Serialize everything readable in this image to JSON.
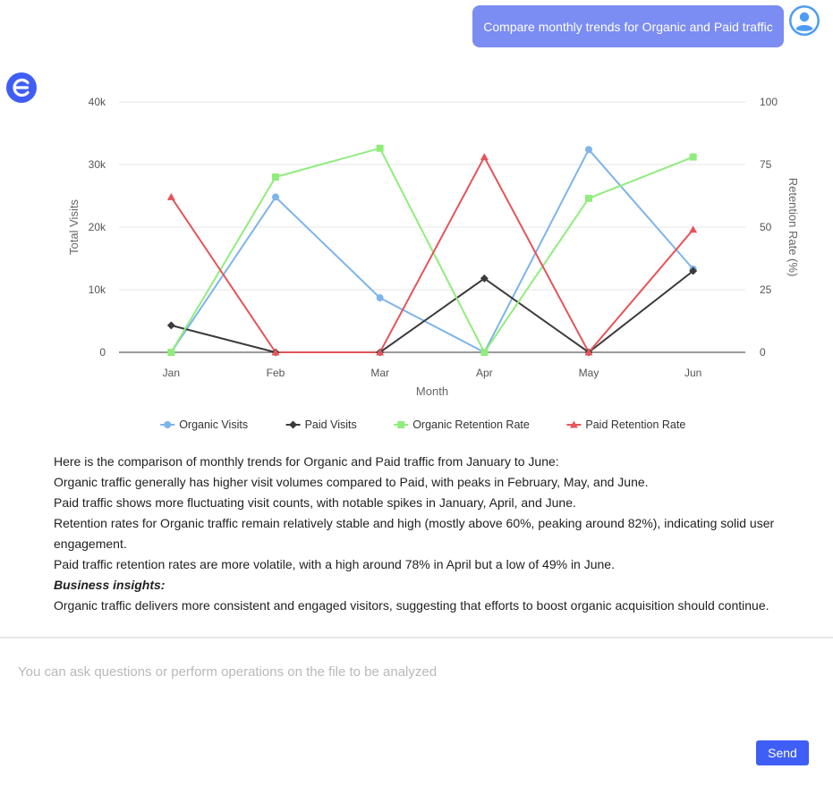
{
  "user_message": "Compare monthly trends for Organic and Paid traffic",
  "colors": {
    "user_bubble": "#7b8cf2",
    "user_avatar": "#4e9bf5",
    "bot_avatar": "#3f5ef5",
    "send_button": "#3f5ef5"
  },
  "chart_data": {
    "type": "line",
    "categories": [
      "Jan",
      "Feb",
      "Mar",
      "Apr",
      "May",
      "Jun"
    ],
    "xlabel": "Month",
    "ylabel_left": "Total Visits",
    "ylabel_right": "Retention Rate (%)",
    "ylim_left": [
      0,
      40000
    ],
    "ylim_right": [
      0,
      100
    ],
    "yticks_left": [
      "0",
      "10k",
      "20k",
      "30k",
      "40k"
    ],
    "yticks_right": [
      "0",
      "25",
      "50",
      "75",
      "100"
    ],
    "grid": true,
    "legend_position": "bottom-center",
    "series": [
      {
        "name": "Organic Visits",
        "axis": "left",
        "marker": "circle",
        "color": "#7eb4ea",
        "values": [
          0,
          24800,
          8700,
          0,
          32400,
          13300
        ]
      },
      {
        "name": "Paid Visits",
        "axis": "left",
        "marker": "diamond",
        "color": "#3b3b3b",
        "values": [
          4300,
          0,
          0,
          11800,
          0,
          13000
        ]
      },
      {
        "name": "Organic Retention Rate",
        "axis": "right",
        "marker": "square",
        "color": "#90ed7d",
        "values": [
          0,
          70,
          81.5,
          0,
          61.5,
          78
        ]
      },
      {
        "name": "Paid Retention Rate",
        "axis": "right",
        "marker": "triangle",
        "color": "#e5545a",
        "values": [
          62,
          0,
          0,
          78,
          0,
          49
        ]
      }
    ]
  },
  "answer": {
    "lines": [
      "Here is the comparison of monthly trends for Organic and Paid traffic from January to June:",
      "Organic traffic generally has higher visit volumes compared to Paid, with peaks in February, May, and June.",
      "Paid traffic shows more fluctuating visit counts, with notable spikes in January, April, and June.",
      "Retention rates for Organic traffic remain relatively stable and high (mostly above 60%, peaking around 82%), indicating solid user engagement.",
      "Paid traffic retention rates are more volatile, with a high around 78% in April but a low of 49% in June."
    ],
    "insights_title": "Business insights:",
    "insights_text": "Organic traffic delivers more consistent and engaged visitors, suggesting that efforts to boost organic acquisition should continue."
  },
  "input": {
    "placeholder": "You can ask questions or perform operations on the file to be analyzed",
    "value": ""
  },
  "send_label": "Send"
}
